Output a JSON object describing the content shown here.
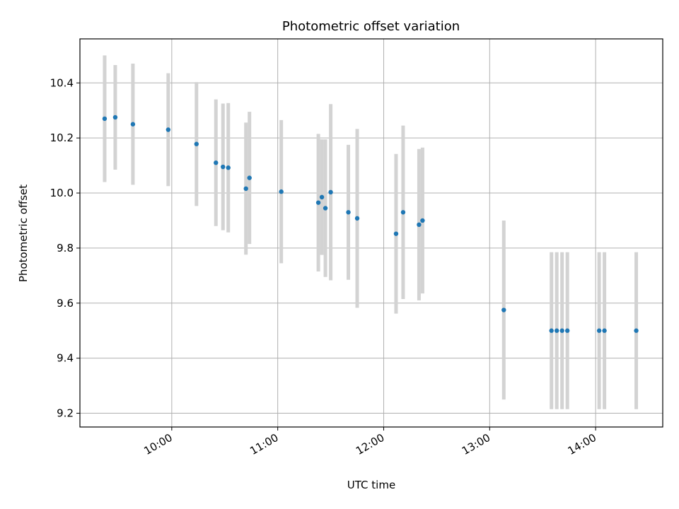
{
  "chart_data": {
    "type": "scatter",
    "title": "Photometric offset variation",
    "xlabel": "UTC time",
    "ylabel": "Photometric offset",
    "x_ticks": [
      "10:00",
      "11:00",
      "12:00",
      "13:00",
      "14:00"
    ],
    "y_ticks": [
      "9.2",
      "9.4",
      "9.6",
      "9.8",
      "10.0",
      "10.2",
      "10.4"
    ],
    "xlim": [
      "09:08",
      "14:38"
    ],
    "ylim": [
      9.15,
      10.56
    ],
    "grid": true,
    "colors": {
      "point": "#1f77b4",
      "errorbar": "#d3d3d3",
      "grid": "#b0b0b0"
    },
    "points": [
      {
        "x": "09:22",
        "y": 10.27,
        "err": 0.23
      },
      {
        "x": "09:28",
        "y": 10.275,
        "err": 0.19
      },
      {
        "x": "09:38",
        "y": 10.25,
        "err": 0.22
      },
      {
        "x": "09:58",
        "y": 10.23,
        "err": 0.205
      },
      {
        "x": "10:14",
        "y": 10.178,
        "err": 0.225
      },
      {
        "x": "10:25",
        "y": 10.11,
        "err": 0.23
      },
      {
        "x": "10:29",
        "y": 10.095,
        "err": 0.23
      },
      {
        "x": "10:32",
        "y": 10.092,
        "err": 0.235
      },
      {
        "x": "10:42",
        "y": 10.016,
        "err": 0.24
      },
      {
        "x": "10:44",
        "y": 10.055,
        "err": 0.24
      },
      {
        "x": "11:02",
        "y": 10.005,
        "err": 0.26
      },
      {
        "x": "11:23",
        "y": 9.965,
        "err": 0.25
      },
      {
        "x": "11:25",
        "y": 9.985,
        "err": 0.21
      },
      {
        "x": "11:27",
        "y": 9.945,
        "err": 0.25
      },
      {
        "x": "11:30",
        "y": 10.003,
        "err": 0.32
      },
      {
        "x": "11:40",
        "y": 9.93,
        "err": 0.245
      },
      {
        "x": "11:45",
        "y": 9.908,
        "err": 0.325
      },
      {
        "x": "12:07",
        "y": 9.852,
        "err": 0.29
      },
      {
        "x": "12:11",
        "y": 9.93,
        "err": 0.315
      },
      {
        "x": "12:20",
        "y": 9.885,
        "err": 0.275
      },
      {
        "x": "12:22",
        "y": 9.9,
        "err": 0.265
      },
      {
        "x": "13:08",
        "y": 9.575,
        "err": 0.325
      },
      {
        "x": "13:35",
        "y": 9.5,
        "err": 0.285
      },
      {
        "x": "13:38",
        "y": 9.5,
        "err": 0.285
      },
      {
        "x": "13:41",
        "y": 9.5,
        "err": 0.285
      },
      {
        "x": "13:44",
        "y": 9.5,
        "err": 0.285
      },
      {
        "x": "14:02",
        "y": 9.5,
        "err": 0.285
      },
      {
        "x": "14:05",
        "y": 9.5,
        "err": 0.285
      },
      {
        "x": "14:23",
        "y": 9.5,
        "err": 0.285
      }
    ]
  }
}
